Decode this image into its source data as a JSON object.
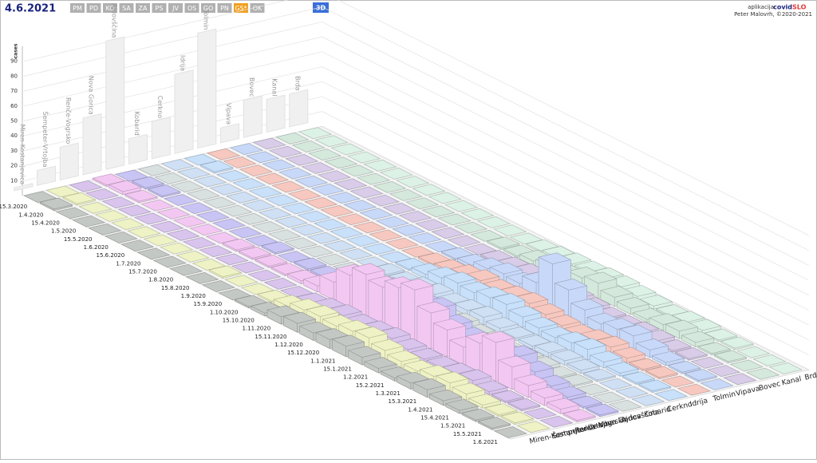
{
  "header": {
    "date": "4.6.2021",
    "buttons": [
      "PM",
      "PD",
      "KO",
      "SA",
      "ZA",
      "PS",
      "JV",
      "OS",
      "GO",
      "PN",
      "GS*",
      "OK"
    ],
    "active_button": 10,
    "mode": "3D",
    "app_label": "aplikacija",
    "app_name_1": "covid",
    "app_name_2": "SLO",
    "author": "Peter Malovrh, ©2020-2021"
  },
  "chart_data": {
    "type": "bar3d",
    "y_label": "cases",
    "ylim": [
      0,
      100
    ],
    "yticks": [
      10,
      20,
      30,
      40,
      50,
      60,
      70,
      80,
      90
    ],
    "categories": [
      "15.3.2020",
      "1.4.2020",
      "15.4.2020",
      "1.5.2020",
      "15.5.2020",
      "1.6.2020",
      "15.6.2020",
      "1.7.2020",
      "15.7.2020",
      "1.8.2020",
      "15.8.2020",
      "1.9.2020",
      "15.9.2020",
      "1.10.2020",
      "15.10.2020",
      "1.11.2020",
      "15.11.2020",
      "1.12.2020",
      "15.12.2020",
      "1.1.2021",
      "15.1.2021",
      "1.2.2021",
      "15.2.2021",
      "1.3.2021",
      "15.3.2021",
      "1.4.2021",
      "15.4.2021",
      "1.5.2021",
      "15.5.2021",
      "1.6.2021"
    ],
    "wall_values": [
      2,
      10,
      22,
      38,
      86,
      17,
      25,
      53,
      77,
      10,
      25,
      22,
      22
    ],
    "series": [
      {
        "name": "Miren-Kostanjevica",
        "color": "#c4c8c4",
        "values": [
          0,
          1,
          0,
          0,
          0,
          0,
          0,
          0,
          0,
          0,
          0,
          0,
          0,
          1,
          2,
          5,
          6,
          5,
          6,
          7,
          5,
          3,
          2,
          4,
          5,
          3,
          2,
          1,
          1,
          0
        ]
      },
      {
        "name": "Šempeter-Vrtojba",
        "color": "#eef2c4",
        "values": [
          0,
          1,
          0,
          0,
          0,
          0,
          0,
          0,
          0,
          0,
          1,
          0,
          0,
          1,
          3,
          6,
          7,
          6,
          8,
          9,
          6,
          4,
          3,
          5,
          6,
          4,
          2,
          1,
          1,
          0
        ]
      },
      {
        "name": "Renče-Vogrsko",
        "color": "#d8c4ec",
        "values": [
          0,
          0,
          0,
          0,
          0,
          0,
          0,
          0,
          0,
          0,
          0,
          0,
          0,
          0,
          1,
          3,
          4,
          3,
          4,
          5,
          3,
          2,
          2,
          3,
          4,
          2,
          1,
          1,
          0,
          0
        ]
      },
      {
        "name": "Nova Gorica",
        "color": "#f2c8f2",
        "values": [
          1,
          2,
          1,
          0,
          0,
          0,
          0,
          0,
          1,
          1,
          1,
          1,
          2,
          4,
          12,
          22,
          28,
          25,
          30,
          34,
          24,
          18,
          12,
          20,
          26,
          15,
          8,
          5,
          3,
          1
        ]
      },
      {
        "name": "Ajdovščina",
        "color": "#c8c4f4",
        "values": [
          0,
          1,
          1,
          0,
          0,
          0,
          0,
          0,
          0,
          1,
          0,
          1,
          1,
          2,
          6,
          12,
          15,
          14,
          16,
          18,
          12,
          9,
          6,
          10,
          13,
          8,
          4,
          2,
          1,
          1
        ]
      },
      {
        "name": "Kobarid",
        "color": "#d8e0e0",
        "values": [
          0,
          0,
          0,
          0,
          0,
          0,
          0,
          0,
          0,
          0,
          0,
          0,
          0,
          0,
          1,
          2,
          3,
          2,
          3,
          4,
          2,
          1,
          1,
          2,
          2,
          1,
          1,
          0,
          0,
          0
        ]
      },
      {
        "name": "Cerkno",
        "color": "#cfe0f4",
        "values": [
          0,
          0,
          0,
          0,
          0,
          0,
          0,
          0,
          0,
          0,
          0,
          0,
          0,
          1,
          1,
          3,
          4,
          3,
          4,
          5,
          3,
          2,
          2,
          3,
          3,
          2,
          1,
          0,
          0,
          0
        ]
      },
      {
        "name": "Idrija",
        "color": "#c8e0fa",
        "values": [
          0,
          1,
          0,
          0,
          0,
          0,
          0,
          0,
          0,
          0,
          0,
          0,
          0,
          1,
          3,
          6,
          8,
          7,
          9,
          10,
          7,
          5,
          4,
          6,
          7,
          4,
          2,
          1,
          1,
          0
        ]
      },
      {
        "name": "Tolmin",
        "color": "#f6c8c0",
        "values": [
          0,
          0,
          0,
          0,
          0,
          0,
          0,
          0,
          0,
          0,
          0,
          0,
          0,
          1,
          2,
          4,
          6,
          5,
          6,
          7,
          5,
          3,
          2,
          4,
          5,
          3,
          1,
          1,
          0,
          0
        ]
      },
      {
        "name": "Vipava",
        "color": "#c8d8f8",
        "values": [
          0,
          0,
          0,
          0,
          0,
          0,
          0,
          0,
          0,
          0,
          0,
          0,
          0,
          1,
          2,
          5,
          7,
          6,
          12,
          30,
          18,
          10,
          6,
          8,
          9,
          5,
          2,
          1,
          1,
          0
        ]
      },
      {
        "name": "Bovec",
        "color": "#d8cce8",
        "values": [
          0,
          0,
          0,
          0,
          0,
          0,
          0,
          0,
          0,
          0,
          0,
          0,
          0,
          0,
          1,
          2,
          3,
          2,
          3,
          3,
          2,
          1,
          1,
          2,
          2,
          1,
          1,
          0,
          0,
          0
        ]
      },
      {
        "name": "Kanal",
        "color": "#d4e8dc",
        "values": [
          0,
          0,
          0,
          0,
          0,
          0,
          0,
          0,
          0,
          0,
          0,
          0,
          0,
          1,
          1,
          3,
          5,
          4,
          8,
          10,
          6,
          4,
          2,
          4,
          5,
          3,
          1,
          1,
          0,
          0
        ]
      },
      {
        "name": "Brda",
        "color": "#ddf2e6",
        "values": [
          0,
          0,
          0,
          0,
          0,
          0,
          0,
          0,
          0,
          0,
          0,
          0,
          0,
          0,
          1,
          2,
          3,
          3,
          4,
          4,
          3,
          2,
          1,
          2,
          2,
          1,
          1,
          0,
          0,
          0
        ]
      }
    ]
  }
}
